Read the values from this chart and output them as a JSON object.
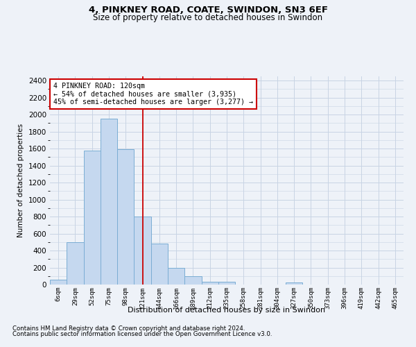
{
  "title1": "4, PINKNEY ROAD, COATE, SWINDON, SN3 6EF",
  "title2": "Size of property relative to detached houses in Swindon",
  "xlabel": "Distribution of detached houses by size in Swindon",
  "ylabel": "Number of detached properties",
  "categories": [
    "6sqm",
    "29sqm",
    "52sqm",
    "75sqm",
    "98sqm",
    "121sqm",
    "144sqm",
    "166sqm",
    "189sqm",
    "212sqm",
    "235sqm",
    "258sqm",
    "281sqm",
    "304sqm",
    "327sqm",
    "350sqm",
    "373sqm",
    "396sqm",
    "419sqm",
    "442sqm",
    "465sqm"
  ],
  "values": [
    60,
    500,
    1580,
    1950,
    1590,
    800,
    480,
    195,
    100,
    35,
    30,
    0,
    0,
    0,
    25,
    0,
    0,
    0,
    0,
    0,
    0
  ],
  "bar_color": "#c5d8ef",
  "bar_edge_color": "#7aadd4",
  "annotation_text_line1": "4 PINKNEY ROAD: 120sqm",
  "annotation_text_line2": "← 54% of detached houses are smaller (3,935)",
  "annotation_text_line3": "45% of semi-detached houses are larger (3,277) →",
  "annotation_box_color": "#ffffff",
  "annotation_box_edge": "#cc0000",
  "vline_color": "#cc0000",
  "footnote1": "Contains HM Land Registry data © Crown copyright and database right 2024.",
  "footnote2": "Contains public sector information licensed under the Open Government Licence v3.0.",
  "ylim": [
    0,
    2450
  ],
  "yticks": [
    0,
    200,
    400,
    600,
    800,
    1000,
    1200,
    1400,
    1600,
    1800,
    2000,
    2200,
    2400
  ],
  "grid_color": "#c8d4e4",
  "bg_color": "#eef2f8",
  "vline_index": 5
}
